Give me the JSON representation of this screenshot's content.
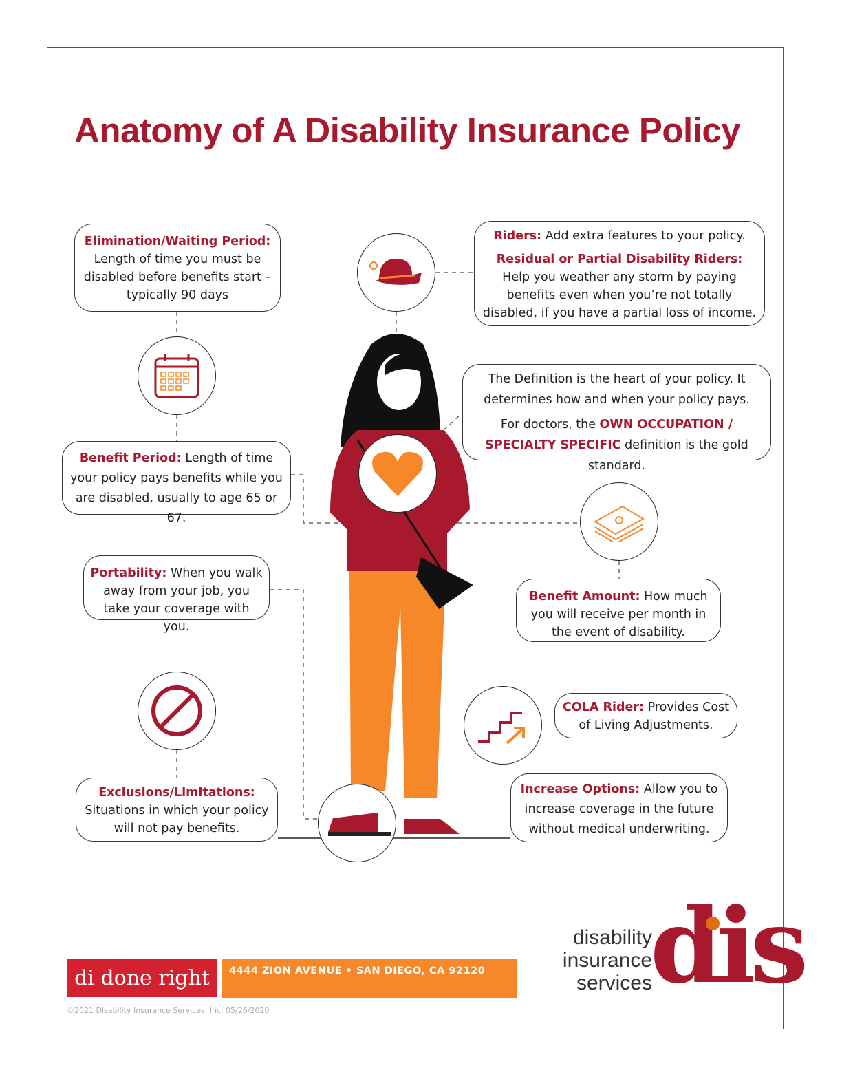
{
  "title": "Anatomy of A Disability Insurance Policy",
  "boxes": {
    "elimination": {
      "label": "Elimination/Waiting Period:",
      "text": "Length of time you must be disabled before benefits start – typically 90 days"
    },
    "riders": {
      "label": "Riders:",
      "text": "Add extra features to your policy.",
      "label2": "Residual or Partial Disability Riders:",
      "text2": "Help you weather any storm by paying benefits even when you’re not totally disabled, if you have a partial loss of income."
    },
    "definition": {
      "text": "The Definition is the heart of your policy. It determines how and when your policy pays.",
      "text2a": "For doctors, the",
      "emph": "OWN OCCUPATION / SPECIALTY SPECIFIC",
      "text2b": "definition is the gold standard."
    },
    "benefit_period": {
      "label": "Benefit Period:",
      "text": "Length of time your policy pays benefits while you are disabled, usually to age 65 or 67."
    },
    "portability": {
      "label": "Portability:",
      "text": "When you walk away from your job, you take your coverage with you."
    },
    "benefit_amount": {
      "label": "Benefit Amount:",
      "text": "How much you will receive per month in the event of disability."
    },
    "cola": {
      "label": "COLA Rider:",
      "text": "Provides Cost of Living Adjustments."
    },
    "exclusions": {
      "label": "Exclusions/Limitations:",
      "text": "Situations in which your policy will not pay benefits."
    },
    "increase": {
      "label": "Increase Options:",
      "text": "Allow you to increase coverage in the future without medical underwriting."
    }
  },
  "footer": {
    "tagline": "di done right",
    "address": "4444 ZION AVENUE • SAN DIEGO, CA 92120",
    "copyright": "©2021 Disability Insurance Services, Inc. 05/26/2020"
  },
  "logo": {
    "words": [
      "disability",
      "insurance",
      "services"
    ],
    "mark": "dis"
  },
  "colors": {
    "red": "#a8192e",
    "orange": "#f7882a"
  }
}
